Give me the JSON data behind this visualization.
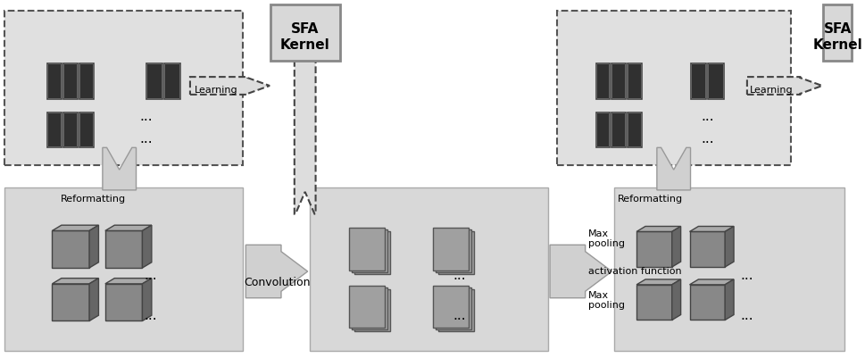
{
  "bg_color": "#ffffff",
  "panel_color": "#d8d8d8",
  "dashed_box_color": "#c8c8c8",
  "sfa_box_color": "#c8c8c8",
  "arrow_color": "#b0b0b0",
  "dashed_arrow_color": "#404040",
  "text_color": "#000000",
  "labels": {
    "reformatting_left": "Reformatting",
    "convolution": "Convolution",
    "max_pooling_top": "Max\npooling",
    "activation_function": "activation function",
    "max_pooling_bottom": "Max\npooling",
    "reformatting_right": "Reformatting",
    "learning_left": "Learning",
    "learning_right": "Learning",
    "sfa_kernel": "SFA\nKernel",
    "dots": "..."
  }
}
